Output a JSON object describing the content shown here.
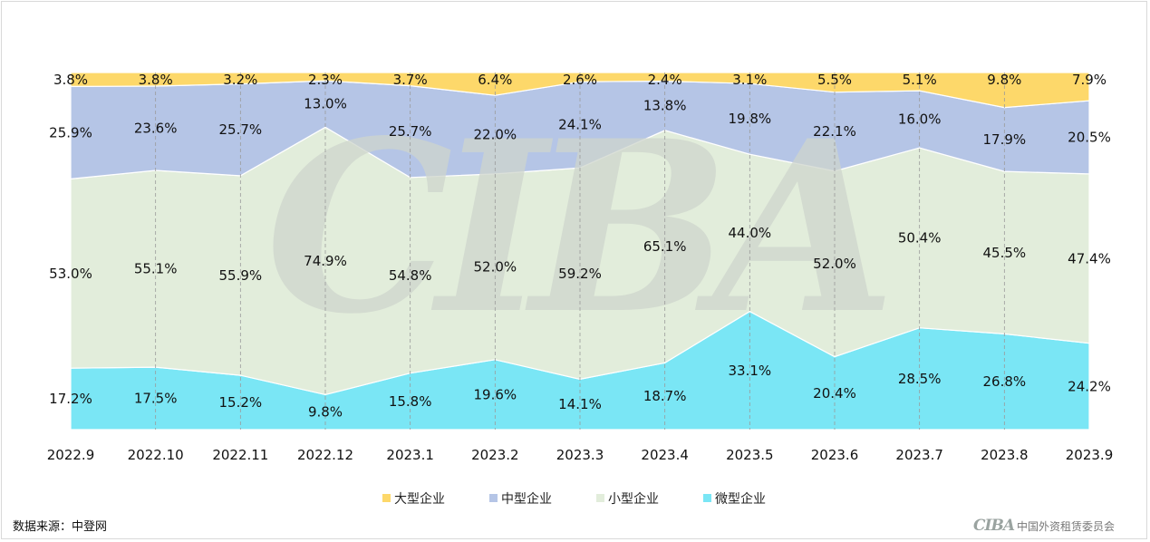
{
  "source_label": "数据来源：中登网",
  "footer": {
    "logo_mark": "CIBA",
    "org_name": "中国外资租赁委员会"
  },
  "watermark": {
    "text": "CIBA",
    "color": "#cfd6cd"
  },
  "chart_data": {
    "type": "area",
    "stacked": true,
    "percent": true,
    "categories": [
      "2022.9",
      "2022.10",
      "2022.11",
      "2022.12",
      "2023.1",
      "2023.2",
      "2023.3",
      "2023.4",
      "2023.5",
      "2023.6",
      "2023.7",
      "2023.8",
      "2023.9"
    ],
    "series": [
      {
        "name": "微型企业",
        "color": "#7ae6f5",
        "values": [
          17.2,
          17.5,
          15.2,
          9.8,
          15.8,
          19.6,
          14.1,
          18.7,
          33.1,
          20.4,
          28.5,
          26.8,
          24.2
        ]
      },
      {
        "name": "小型企业",
        "color": "#e2eddb",
        "values": [
          53.0,
          55.1,
          55.9,
          74.9,
          54.8,
          52.0,
          59.2,
          65.1,
          44.0,
          52.0,
          50.4,
          45.5,
          47.4
        ]
      },
      {
        "name": "中型企业",
        "color": "#b5c5e6",
        "values": [
          25.9,
          23.6,
          25.7,
          13.0,
          25.7,
          22.0,
          24.1,
          13.8,
          19.8,
          22.1,
          16.0,
          17.9,
          20.5
        ]
      },
      {
        "name": "大型企业",
        "color": "#fdd86a",
        "values": [
          3.8,
          3.8,
          3.2,
          2.3,
          3.7,
          6.4,
          2.6,
          2.4,
          3.1,
          5.5,
          5.1,
          9.8,
          7.9
        ]
      }
    ],
    "legend_order": [
      "大型企业",
      "中型企业",
      "小型企业",
      "微型企业"
    ],
    "legend_position": "bottom",
    "value_suffix": "%",
    "ylim": [
      0,
      100
    ],
    "grid": "vertical-dashed"
  }
}
